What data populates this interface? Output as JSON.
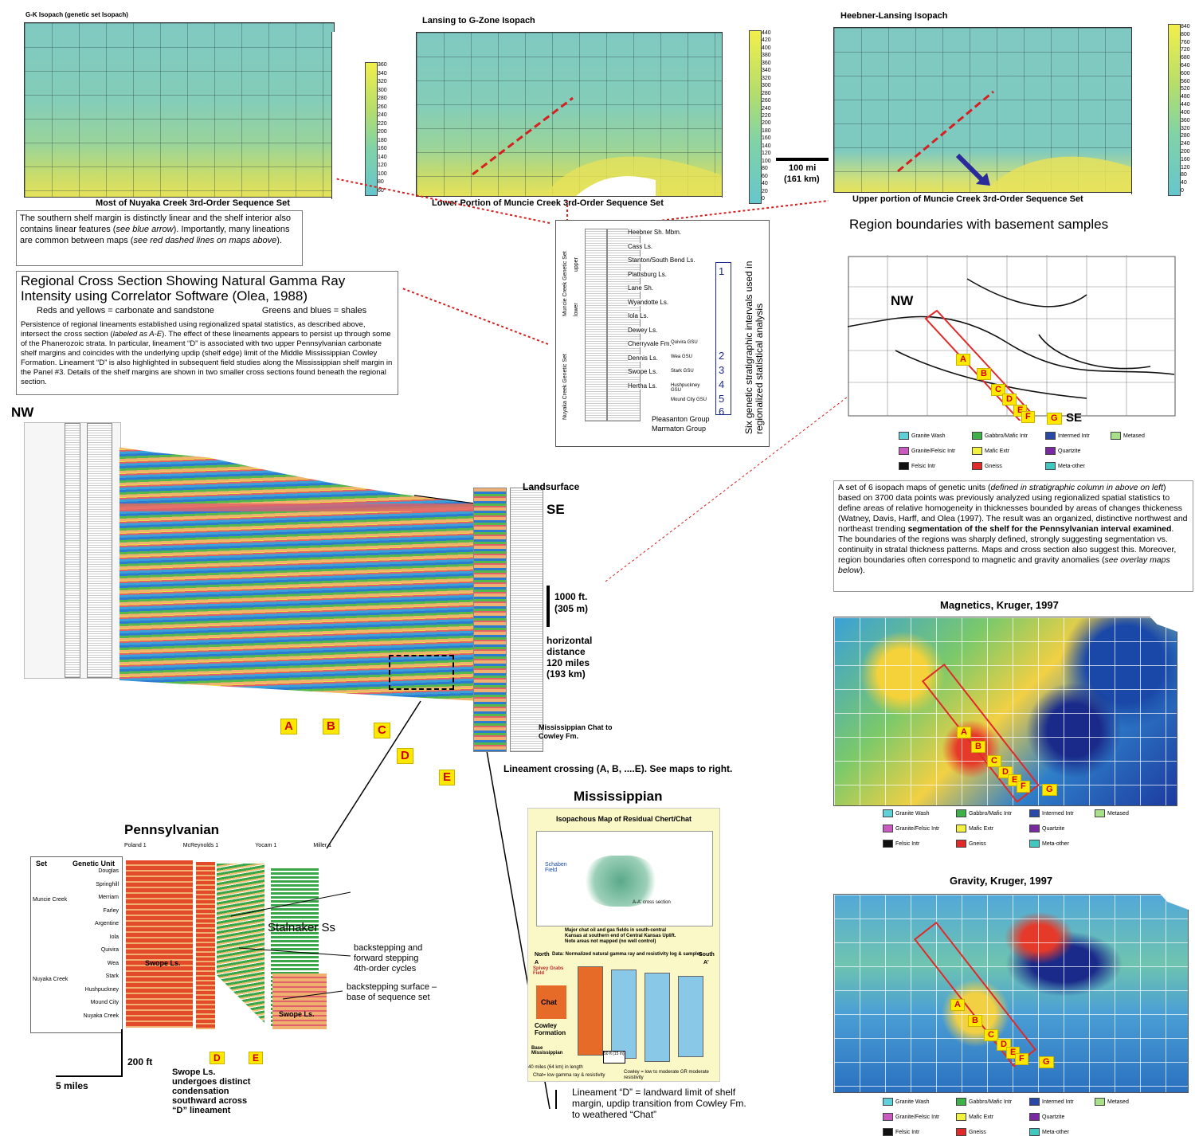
{
  "isopach_maps": {
    "map1": {
      "title": "G-K Isopach (genetic set Isopach)",
      "caption": "Most of Nuyaka Creek 3rd-Order Sequence Set",
      "scale": [
        "360",
        "340",
        "320",
        "300",
        "280",
        "260",
        "240",
        "220",
        "200",
        "180",
        "160",
        "140",
        "120",
        "100",
        "80",
        "60"
      ]
    },
    "map2": {
      "title": "Lansing to G-Zone Isopach",
      "caption": "Lower Portion of Muncie Creek 3rd-Order Sequence Set",
      "scale": [
        "440",
        "420",
        "400",
        "380",
        "360",
        "340",
        "320",
        "300",
        "280",
        "260",
        "240",
        "220",
        "200",
        "180",
        "160",
        "140",
        "120",
        "100",
        "80",
        "60",
        "40",
        "20",
        "0"
      ]
    },
    "map3": {
      "title": "Heebner-Lansing Isopach",
      "caption": "Upper portion of Muncie Creek 3rd-Order Sequence Set",
      "scale": [
        "840",
        "800",
        "760",
        "720",
        "680",
        "640",
        "600",
        "560",
        "520",
        "480",
        "440",
        "400",
        "360",
        "320",
        "280",
        "240",
        "200",
        "160",
        "120",
        "80",
        "40",
        "0"
      ]
    },
    "scale_bar": {
      "line1": "100 mi",
      "line2": "(161 km)"
    }
  },
  "notes": {
    "shelf_note": {
      "t1": "The southern shelf margin is distinctly linear and the shelf interior also contains linear features (",
      "t1i": "see blue arrow",
      "t2": "). Importantly, many lineations are common between maps (",
      "t2i": "see red dashed lines on maps above",
      "t3": ")."
    },
    "regional": {
      "title": "Regional Cross Section Showing Natural Gamma Ray Intensity using Correlator Software (Olea, 1988)",
      "legend_reds": "Reds and yellows = carbonate and sandstone",
      "legend_greens": "Greens and blues = shales",
      "p1": "Persistence of regional lineaments established using regionalized spatal statistics, as described above, intersect the cross section (",
      "p1i": "labeled as A-E",
      "p2": "). The effect of these lineaments appears to persist up through some of the Phanerozoic strata. In particular, lineament “D” is associated with two upper Pennsylvanian carbonate shelf margins and coincides with the underlying updip (shelf edge) limit of the Middle Mississippian Cowley Formation. Lineament “D” is also highlighted in subsequent field studies along the Mississippian shelf margin in the Panel #3. Details of the shelf margins are shown in two smaller cross sections found beneath the regional section."
    }
  },
  "strat_column": {
    "vertical_label": "Six genetic stratigraphic intervals used in regionalized statistical analysis",
    "set_labels": [
      "Muncie Creek Genetic Set",
      "Nuyaka Creek Genetic Set"
    ],
    "upper": "upper",
    "lower": "lower",
    "units": [
      "Heebner Sh. Mbm.",
      "Cass Ls.",
      "Stanton/South Bend Ls.",
      "Plattsburg Ls.",
      "Lane Sh.",
      "Wyandotte Ls.",
      "Iola Ls.",
      "Dewey Ls.",
      "Cherryvale Fm.",
      "Dennis Ls.",
      "Swope Ls.",
      "Hertha Ls."
    ],
    "gsu": [
      "Quivira GSU",
      "Wea GSU",
      "Stark GSU",
      "Hushpuckney GSU",
      "Mound City GSU"
    ],
    "numbers": [
      "1",
      "2",
      "3",
      "4",
      "5",
      "6"
    ],
    "base": [
      "Pleasanton Group",
      "Marmaton Group"
    ]
  },
  "cross_section": {
    "nw": "NW",
    "se": "SE",
    "landsurface": "Landsurface",
    "vscale_line1": "1000 ft.",
    "vscale_line2": "(305 m)",
    "hdist": "horizontal distance 120 miles (193 km)",
    "miss_label": "Mississippian Chat to Cowley Fm.",
    "lineament_note": "Lineament crossing (A, B, ....E). See maps to right.",
    "letters": [
      "A",
      "B",
      "C",
      "D",
      "E"
    ]
  },
  "pennsylvanian": {
    "title": "Pennsylvanian",
    "col_set": "Set",
    "col_unit": "Genetic Unit",
    "sets": [
      "Muncie Creek",
      "Nuyaka Creek"
    ],
    "units": [
      "Douglas",
      "Springhill",
      "Merriam",
      "Farley",
      "Argentine",
      "Iola",
      "Quivira",
      "Wea",
      "Stark",
      "Hushpuckney",
      "Mound City",
      "Nuyaka Creek"
    ],
    "wells": [
      "Poland 1",
      "McReynolds 1",
      "Yocam 1",
      "Miller 1"
    ],
    "stalnaker": "Stalnaker Ss",
    "swope1": "Swope Ls.",
    "swope2": "Swope Ls.",
    "backstep_forward": "backstepping and forward stepping 4th-order cycles",
    "backstep_surface": "backstepping surface – base of sequence set",
    "swope_note": "Swope Ls. undergoes distinct condensation southward across “D” lineament",
    "vscale": "200 ft",
    "hscale": "5 miles",
    "letters": [
      "D",
      "E"
    ]
  },
  "mississippian": {
    "title": "Mississippian",
    "inset_title": "Isopachous Map of Residual Chert/Chat",
    "schaben": "Schaben Field",
    "aa_label": "A-A' cross section",
    "map_note": "Major chat oil and gas fields in south-central Kansas at southern end of Central Kansas Uplift. Note areas not mapped (no well control)",
    "north": "North",
    "south": "South",
    "a": "A",
    "a_prime": "A'",
    "datum": "Data: Normalized natural gamma ray and resistivity log & samples",
    "spivey": "Spivey Grabs Field",
    "chat": "Chat",
    "cowley": "Cowley Formation",
    "base": "Base Mississippian",
    "footer_left": "Chat= low gamma ray & resistivity",
    "footer_right": "Cowley = low to moderate GR moderate resistivity",
    "length": "40 miles (64 km) in length",
    "scale": "50 ft (15 m)",
    "lineament_d": "Lineament “D” = landward limit of shelf margin, updip transition from Cowley Fm. to weathered “Chat”"
  },
  "region_panel": {
    "title": "Region boundaries with basement samples",
    "nw": "NW",
    "se": "SE",
    "letters": [
      "A",
      "B",
      "C",
      "D",
      "E",
      "F",
      "G"
    ],
    "description_a": "A set of 6 isopach maps of genetic units (",
    "description_ai": "defined in stratigraphic column in above on left",
    "description_b": ") based on 3700 data points was previously analyzed using regionalized spatial statistics to define areas of relative homogeneity in thicknesses bounded by areas of changes thickeness (Watney, Davis, Harff, and Olea (1997). The result was an organized, distinctive northwest and northeast trending ",
    "description_bold": "segmentation of the shelf for the Pennsylvanian interval examined",
    "description_c": ". The boundaries of the regions was sharply defined, strongly suggesting segmentation vs. continuity in stratal thickness patterns. Maps and cross section also suggest this. Moreover, region boundaries often correspond to magnetic and gravity anomalies (",
    "description_ci": "see overlay maps below",
    "description_d": ")."
  },
  "legend": [
    "Granite Wash",
    "Gabbro/Mafic Intr",
    "Intermed Intr",
    "Metased",
    "Granite/Felsic Intr",
    "Mafic Extr",
    "Quartzite",
    "Felsic Intr",
    "Gneiss",
    "Meta-other"
  ],
  "legend_colors": [
    "#5fd0d8",
    "#3fb04a",
    "#2a48a8",
    "#a8e08a",
    "#c85ac0",
    "#f2f040",
    "#7a2aa0",
    "#111111",
    "#e02a2a",
    "#40c8c0"
  ],
  "magnetics": {
    "title": "Magnetics, Kruger, 1997"
  },
  "gravity": {
    "title": "Gravity, Kruger, 1997"
  }
}
